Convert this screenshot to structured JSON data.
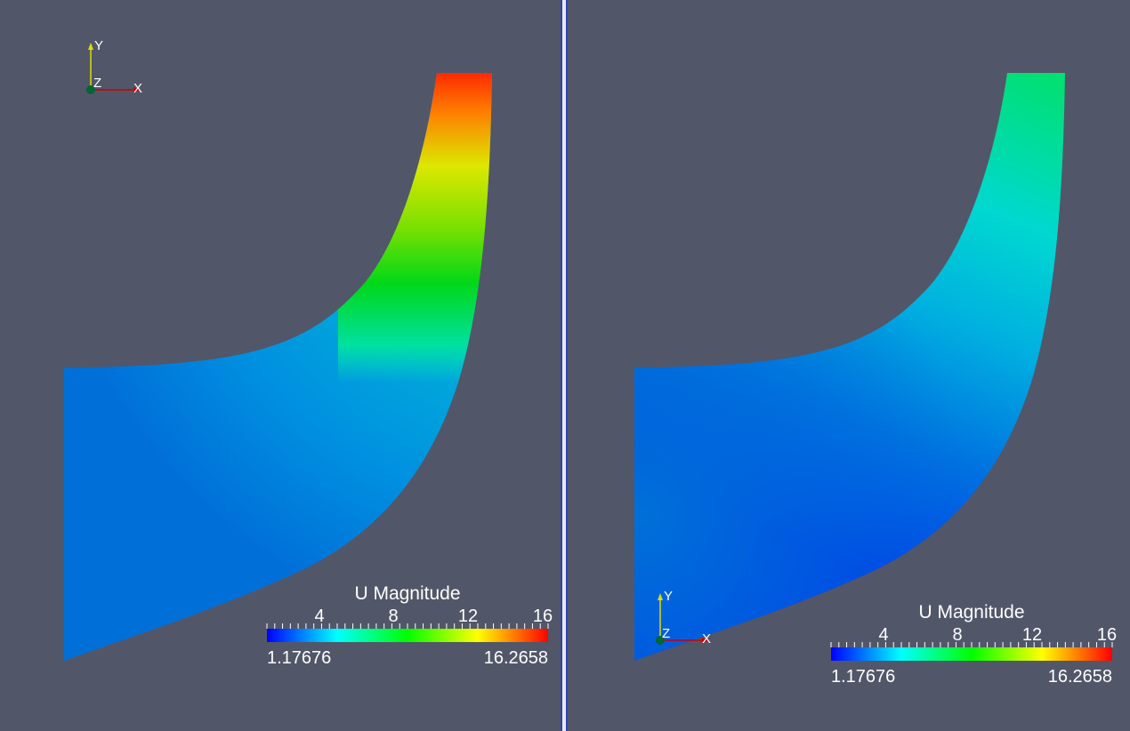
{
  "views": [
    {
      "name": "left",
      "orientation_axes": {
        "x_label": "X",
        "y_label": "Y",
        "z_label": "Z"
      },
      "colorbar": {
        "title": "U Magnitude",
        "ticks": [
          "4",
          "8",
          "12",
          "16"
        ],
        "min_label": "1.17676",
        "max_label": "16.2658"
      }
    },
    {
      "name": "right",
      "orientation_axes": {
        "x_label": "X",
        "y_label": "Y",
        "z_label": "Z"
      },
      "colorbar": {
        "title": "U Magnitude",
        "ticks": [
          "4",
          "8",
          "12",
          "16"
        ],
        "min_label": "1.17676",
        "max_label": "16.2658"
      }
    }
  ],
  "colors": {
    "background": "#525669",
    "colormap": [
      "#0000ff",
      "#00ffff",
      "#00ff00",
      "#ffff00",
      "#ff0000"
    ],
    "axis_x": "#cc0000",
    "axis_y": "#dddd00",
    "axis_z": "#006633"
  }
}
